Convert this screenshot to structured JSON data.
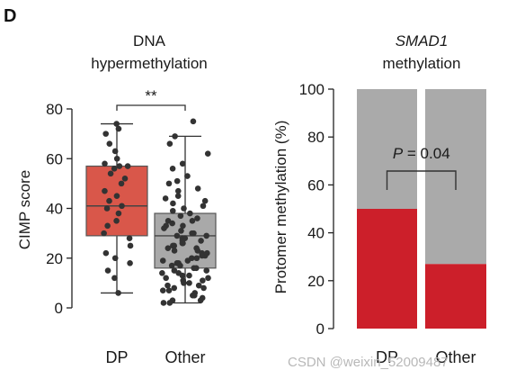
{
  "panel_letter": "D",
  "watermark": "CSDN @weixin_52009487",
  "chart_data": [
    {
      "type": "box",
      "title_lines": [
        "DNA",
        "hypermethylation"
      ],
      "ylabel": "CIMP score",
      "xlabel": "",
      "ylim": [
        0,
        80
      ],
      "yticks": [
        0,
        20,
        40,
        60,
        80
      ],
      "categories": [
        "DP",
        "Other"
      ],
      "box_colors": [
        "#d9574a",
        "#a9a9a9"
      ],
      "significance": "**",
      "boxes": [
        {
          "name": "DP",
          "min": 6,
          "q1": 29,
          "median": 41,
          "q3": 57,
          "max": 74
        },
        {
          "name": "Other",
          "min": 2,
          "q1": 16,
          "median": 29,
          "q3": 38,
          "max": 69
        }
      ],
      "points": [
        [
          74,
          72,
          70,
          66,
          63,
          60,
          58,
          57,
          57,
          56,
          54,
          52,
          50,
          47,
          45,
          43,
          41,
          40,
          38,
          35,
          33,
          30,
          28,
          25,
          22,
          20,
          18,
          15,
          12,
          6
        ],
        [
          75,
          69,
          66,
          62,
          58,
          56,
          53,
          51,
          50,
          48,
          47,
          45,
          44,
          43,
          42,
          41,
          40,
          39,
          38,
          37,
          36,
          35,
          35,
          34,
          33,
          33,
          32,
          31,
          30,
          30,
          29,
          29,
          28,
          28,
          27,
          27,
          26,
          26,
          25,
          25,
          24,
          24,
          23,
          23,
          22,
          22,
          21,
          21,
          20,
          20,
          19,
          19,
          18,
          18,
          17,
          17,
          16,
          16,
          15,
          15,
          14,
          14,
          13,
          13,
          12,
          12,
          11,
          11,
          10,
          10,
          9,
          9,
          8,
          8,
          7,
          7,
          6,
          5,
          5,
          4,
          3,
          3,
          2,
          2
        ]
      ]
    },
    {
      "type": "bar",
      "stacked": true,
      "title_lines": [
        "SMAD1",
        "methylation"
      ],
      "title_italic_first": true,
      "ylabel": "Protomer methylation (%)",
      "xlabel": "",
      "ylim": [
        0,
        100
      ],
      "yticks": [
        0,
        20,
        40,
        60,
        80,
        100
      ],
      "categories": [
        "DP",
        "Other"
      ],
      "series": [
        {
          "values": [
            50,
            27
          ],
          "color": "#cc1f2a"
        },
        {
          "values": [
            50,
            73
          ],
          "color": "#aaaaaa"
        }
      ],
      "annotation": {
        "prefix": "P",
        "text": " = 0.04"
      }
    }
  ]
}
